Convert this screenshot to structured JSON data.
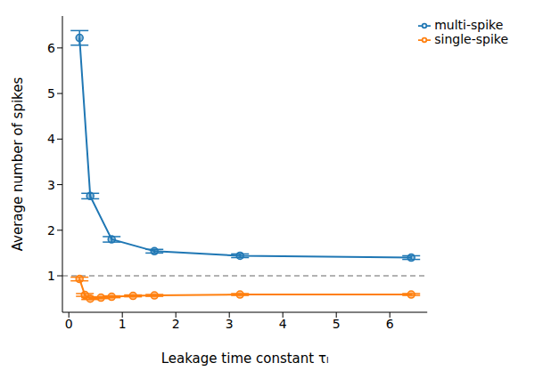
{
  "chart_data": {
    "type": "line",
    "x_label": "Leakage time constant τₗ",
    "y_label": "Average number of spikes",
    "xlim": [
      -0.12,
      6.7
    ],
    "xticks": [
      0,
      1,
      2,
      3,
      4,
      5,
      6
    ],
    "ylim": [
      0.2,
      6.7
    ],
    "yticks": [
      1,
      2,
      3,
      4,
      5,
      6
    ],
    "grid": false,
    "legend": "upper right",
    "reference_lines": [
      1
    ],
    "series": [
      {
        "name": "multi-spike",
        "color": "#1f77b4",
        "marker": "o",
        "x": [
          0.2,
          0.4,
          0.8,
          1.6,
          3.2,
          6.4
        ],
        "values": [
          6.22,
          2.75,
          1.8,
          1.54,
          1.44,
          1.4
        ],
        "errors": [
          0.16,
          0.06,
          0.06,
          0.04,
          0.04,
          0.04
        ]
      },
      {
        "name": "single-spike",
        "color": "#ff7f0e",
        "marker": "o",
        "x": [
          0.2,
          0.3,
          0.4,
          0.6,
          0.8,
          1.2,
          1.6,
          3.2,
          6.4
        ],
        "values": [
          0.93,
          0.58,
          0.5,
          0.52,
          0.54,
          0.56,
          0.57,
          0.59,
          0.59
        ],
        "errors": [
          0.04,
          0.03,
          0.02,
          0.02,
          0.02,
          0.02,
          0.02,
          0.02,
          0.02
        ]
      }
    ]
  }
}
